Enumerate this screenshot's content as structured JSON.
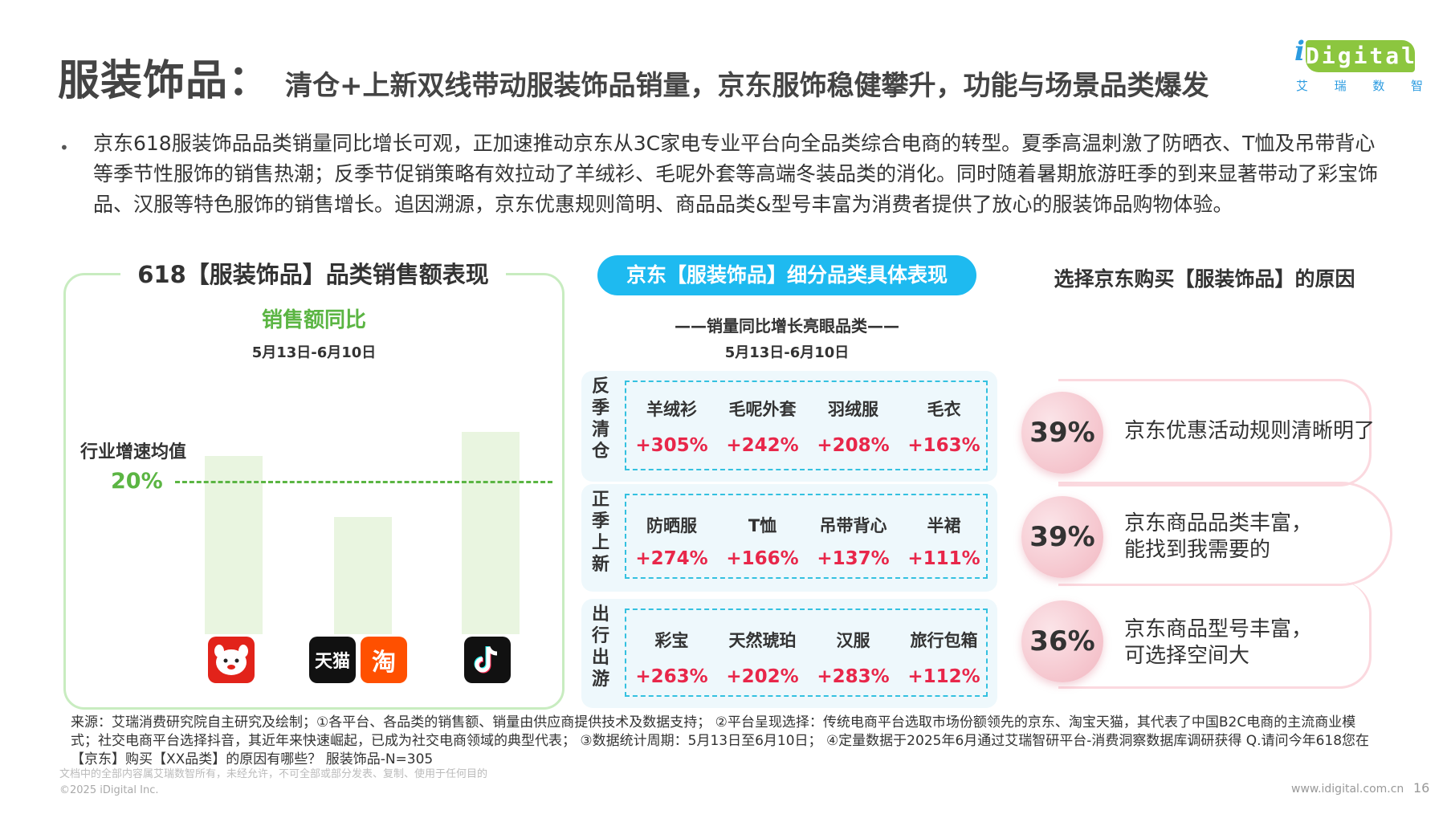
{
  "header": {
    "title_main": "服装饰品：",
    "title_sub": "清仓+上新双线带动服装饰品销量，京东服饰稳健攀升，功能与场景品类爆发"
  },
  "logo": {
    "i": "i",
    "word": "Digital",
    "cn": [
      "艾",
      "瑞",
      "数",
      "智"
    ]
  },
  "intro": {
    "bullet": "•",
    "text": "京东618服装饰品品类销量同比增长可观，正加速推动京东从3C家电专业平台向全品类综合电商的转型。夏季高温刺激了防晒衣、T恤及吊带背心等季节性服饰的销售热潮；反季节促销策略有效拉动了羊绒衫、毛呢外套等高端冬装品类的消化。同时随着暑期旅游旺季的到来显著带动了彩宝饰品、汉服等特色服饰的销售增长。追因溯源，京东优惠规则简明、商品品类&型号丰富为消费者提供了放心的服装饰品购物体验。"
  },
  "left_panel": {
    "heading": "618【服装饰品】品类销售额表现",
    "metric": "销售额同比",
    "date_range": "5月13日-6月10日",
    "avg_label": "行业增速均值",
    "avg_value": "20%",
    "platforms": [
      {
        "icon": "jd-icon",
        "label": "",
        "bar_level": 0.88
      },
      {
        "icon": "tmall-icon",
        "label": "天猫",
        "bar_level": 0.58
      },
      {
        "icon": "taobao-icon",
        "label": "淘",
        "bar_level": 0.58
      },
      {
        "icon": "douyin-icon",
        "label": "",
        "bar_level": 1.0
      }
    ]
  },
  "middle_panel": {
    "heading": "京东【服装饰品】细分品类具体表现",
    "subheading": "——销量同比增长亮眼品类——",
    "date_range": "5月13日-6月10日",
    "groups": [
      {
        "label": "反季清仓",
        "items": [
          {
            "name": "羊绒衫",
            "pct": "+305%"
          },
          {
            "name": "毛呢外套",
            "pct": "+242%"
          },
          {
            "name": "羽绒服",
            "pct": "+208%"
          },
          {
            "name": "毛衣",
            "pct": "+163%"
          }
        ]
      },
      {
        "label": "正季上新",
        "items": [
          {
            "name": "防晒服",
            "pct": "+274%"
          },
          {
            "name": "T恤",
            "pct": "+166%"
          },
          {
            "name": "吊带背心",
            "pct": "+137%"
          },
          {
            "name": "半裙",
            "pct": "+111%"
          }
        ]
      },
      {
        "label": "出行出游",
        "items": [
          {
            "name": "彩宝",
            "pct": "+263%"
          },
          {
            "name": "天然琥珀",
            "pct": "+202%"
          },
          {
            "name": "汉服",
            "pct": "+283%"
          },
          {
            "name": "旅行包箱",
            "pct": "+112%"
          }
        ]
      }
    ]
  },
  "right_panel": {
    "heading": "选择京东购买【服装饰品】的原因",
    "reasons": [
      {
        "pct": "39%",
        "line1": "京东优惠活动规则清晰明了",
        "line2": ""
      },
      {
        "pct": "39%",
        "line1": "京东商品品类丰富，",
        "line2": "能找到我需要的"
      },
      {
        "pct": "36%",
        "line1": "京东商品型号丰富，",
        "line2": "可选择空间大"
      }
    ]
  },
  "footer": {
    "source": "来源：艾瑞消费研究院自主研究及绘制；①各平台、各品类的销售额、销量由供应商提供技术及数据支持； ②平台呈现选择：传统电商平台选取市场份额领先的京东、淘宝天猫，其代表了中国B2C电商的主流商业模式；社交电商平台选择抖音，其近年来快速崛起，已成为社交电商领域的典型代表； ③数据统计周期：5月13日至6月10日； ④定量数据于2025年6月通过艾瑞智研平台-消费洞察数据库调研获得 Q.请问今年618您在【京东】购买【XX品类】的原因有哪些？ 服装饰品-N=305",
    "copyright_note": "文档中的全部内容属艾瑞数智所有，未经允许，不可全部或部分发表、复制、使用于任何目的",
    "copyright": "©2025 iDigital Inc.",
    "site": "www.idigital.com.cn",
    "page": "16"
  }
}
